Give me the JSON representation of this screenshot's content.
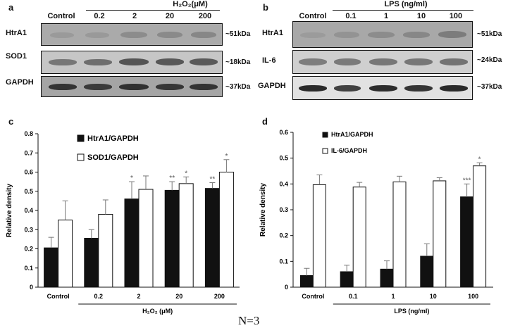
{
  "panel_a": {
    "letter": "a",
    "treatment": "H₂O₂(μM)",
    "lanes": [
      "Control",
      "0.2",
      "2",
      "20",
      "200"
    ],
    "rows": [
      {
        "label": "HtrA1",
        "mw": "~51kDa"
      },
      {
        "label": "SOD1",
        "mw": "~18kDa"
      },
      {
        "label": "GAPDH",
        "mw": "~37kDa"
      }
    ]
  },
  "panel_b": {
    "letter": "b",
    "treatment": "LPS (ng/ml)",
    "lanes": [
      "Control",
      "0.1",
      "1",
      "10",
      "100"
    ],
    "rows": [
      {
        "label": "HtrA1",
        "mw": "~51kDa"
      },
      {
        "label": "IL-6",
        "mw": "~24kDa"
      },
      {
        "label": "GAPDH",
        "mw": "~37kDa"
      }
    ]
  },
  "chart_data": [
    {
      "panel": "c",
      "type": "bar",
      "categories": [
        "Control",
        "0.2",
        "2",
        "20",
        "200"
      ],
      "xlabel": "H₂O₂ (μM)",
      "ylabel": "Relative density",
      "ylim": [
        0,
        0.8
      ],
      "yticks": [
        "0",
        "0.1",
        "0.2",
        "0.3",
        "0.4",
        "0.5",
        "0.6",
        "0.7",
        "0.8"
      ],
      "legend_position": "top-left",
      "series": [
        {
          "name": "HtrA1/GAPDH",
          "fill": "#111111",
          "values": [
            0.205,
            0.255,
            0.46,
            0.505,
            0.515
          ],
          "errors": [
            0.055,
            0.045,
            0.09,
            0.045,
            0.03
          ],
          "stars": [
            "",
            "",
            "*",
            "**",
            "**"
          ]
        },
        {
          "name": "SOD1/GAPDH",
          "fill": "#ffffff",
          "values": [
            0.35,
            0.38,
            0.51,
            0.54,
            0.6
          ],
          "errors": [
            0.1,
            0.075,
            0.07,
            0.035,
            0.065
          ],
          "stars": [
            "",
            "",
            "",
            "*",
            "*"
          ]
        }
      ]
    },
    {
      "panel": "d",
      "type": "bar",
      "categories": [
        "Control",
        "0.1",
        "1",
        "10",
        "100"
      ],
      "xlabel": "LPS (ng/ml)",
      "ylabel": "Relative density",
      "ylim": [
        0,
        0.6
      ],
      "yticks": [
        "0",
        "0.1",
        "0.2",
        "0.3",
        "0.4",
        "0.5",
        "0.6"
      ],
      "legend_position": "top-left",
      "series": [
        {
          "name": "HtrA1/GAPDH",
          "fill": "#111111",
          "values": [
            0.045,
            0.06,
            0.07,
            0.12,
            0.35
          ],
          "errors": [
            0.028,
            0.025,
            0.032,
            0.048,
            0.05
          ],
          "stars": [
            "",
            "",
            "",
            "",
            "***"
          ]
        },
        {
          "name": "IL-6/GAPDH",
          "fill": "#ffffff",
          "values": [
            0.397,
            0.388,
            0.408,
            0.412,
            0.47
          ],
          "errors": [
            0.038,
            0.018,
            0.022,
            0.012,
            0.012
          ],
          "stars": [
            "",
            "",
            "",
            "",
            "*"
          ]
        }
      ]
    }
  ],
  "footnote": "N=3"
}
